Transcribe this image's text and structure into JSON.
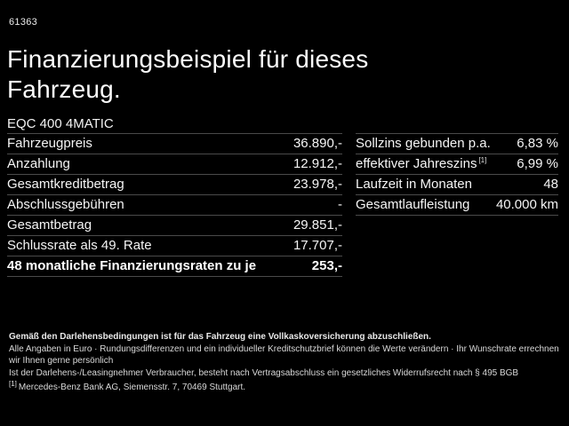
{
  "page": {
    "id_code": "61363",
    "title_line1": "Finanzierungsbeispiel für dieses",
    "title_line2": "Fahrzeug.",
    "vehicle_model": "EQC 400 4MATIC"
  },
  "finance_table": {
    "rows": [
      {
        "label": "Fahrzeugpreis",
        "value": "36.890,-"
      },
      {
        "label": "Anzahlung",
        "value": "12.912,-"
      },
      {
        "label": "Gesamtkreditbetrag",
        "value": "23.978,-"
      },
      {
        "label": "Abschlussgebühren",
        "value": "-"
      },
      {
        "label": "Gesamtbetrag",
        "value": "29.851,-"
      },
      {
        "label": "Schlussrate als 49. Rate",
        "value": "17.707,-"
      },
      {
        "label": "48 monatliche Finanzierungsraten zu je",
        "value": "253,-"
      }
    ]
  },
  "conditions_table": {
    "rows": [
      {
        "label": "Sollzins gebunden p.a.",
        "value": "6,83 %"
      },
      {
        "label": "effektiver Jahreszins",
        "footnote": "[1]",
        "value": "6,99 %"
      },
      {
        "label": "Laufzeit in Monaten",
        "value": "48"
      },
      {
        "label": "Gesamtlaufleistung",
        "value": "40.000 km"
      }
    ]
  },
  "footer": {
    "line_bold": "Gemäß den Darlehensbedingungen ist für das Fahrzeug eine Vollkaskoversicherung abzuschließen.",
    "line2": "Alle Angaben in Euro · Rundungsdifferenzen und ein individueller Kreditschutzbrief können die Werte verändern · Ihr Wunschrate errechnen wir Ihnen gerne persönlich",
    "line3": "Ist der Darlehens-/Leasingnehmer Verbraucher, besteht nach Vertragsabschluss ein gesetzliches Widerrufsrecht nach § 495 BGB",
    "footnote_marker": "[1]",
    "footnote_text": "Mercedes-Benz Bank AG, Siemensstr. 7, 70469 Stuttgart."
  },
  "colors": {
    "background": "#000000",
    "text": "#f5f5f5",
    "divider": "#4a4a4a"
  }
}
